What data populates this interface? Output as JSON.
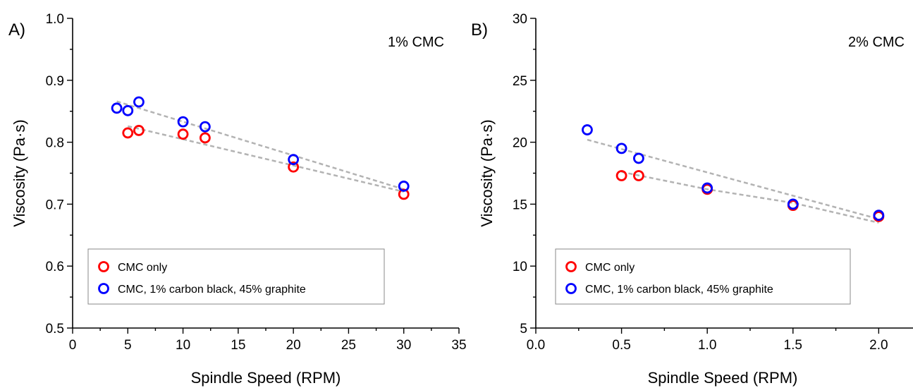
{
  "chart_data": [
    {
      "type": "scatter",
      "panel_label": "A)",
      "annotation": "1% CMC",
      "xlabel": "Spindle Speed (RPM)",
      "ylabel": "Viscosity (Pa·s)",
      "xlim": [
        0,
        35
      ],
      "ylim": [
        0.5,
        1.0
      ],
      "x_ticks": [
        0,
        5,
        10,
        15,
        20,
        25,
        30,
        35
      ],
      "x_tick_labels": [
        "0",
        "5",
        "10",
        "15",
        "20",
        "25",
        "30",
        "35"
      ],
      "y_ticks": [
        0.5,
        0.6,
        0.7,
        0.8,
        0.9,
        1.0
      ],
      "y_tick_labels": [
        "0.5",
        "0.6",
        "0.7",
        "0.8",
        "0.9",
        "1.0"
      ],
      "legend_position": "bottom-left",
      "series": [
        {
          "name": "CMC only",
          "color": "#ff0000",
          "x": [
            5,
            6,
            10,
            12,
            20,
            30
          ],
          "y": [
            0.815,
            0.819,
            0.813,
            0.807,
            0.76,
            0.716
          ],
          "trend": [
            [
              5,
              0.826
            ],
            [
              30,
              0.72
            ]
          ]
        },
        {
          "name": "CMC, 1% carbon black, 45% graphite",
          "color": "#0000ff",
          "x": [
            4,
            5,
            6,
            10,
            12,
            20,
            30
          ],
          "y": [
            0.855,
            0.851,
            0.865,
            0.833,
            0.825,
            0.772,
            0.729
          ],
          "trend": [
            [
              4,
              0.866
            ],
            [
              30,
              0.724
            ]
          ]
        }
      ]
    },
    {
      "type": "scatter",
      "panel_label": "B)",
      "annotation": "2% CMC",
      "xlabel": "Spindle Speed (RPM)",
      "ylabel": "Viscosity (Pa·s)",
      "xlim": [
        0,
        2.2
      ],
      "ylim": [
        5,
        30
      ],
      "x_ticks": [
        0,
        0.5,
        1.0,
        1.5,
        2.0
      ],
      "x_tick_labels": [
        "0.0",
        "0.5",
        "1.0",
        "1.5",
        "2.0"
      ],
      "y_ticks": [
        5,
        10,
        15,
        20,
        25,
        30
      ],
      "y_tick_labels": [
        "5",
        "10",
        "15",
        "20",
        "25",
        "30"
      ],
      "legend_position": "bottom-left",
      "series": [
        {
          "name": "CMC only",
          "color": "#ff0000",
          "x": [
            0.5,
            0.6,
            1.0,
            1.5,
            2.0
          ],
          "y": [
            17.3,
            17.3,
            16.2,
            14.9,
            14.0
          ],
          "trend": [
            [
              0.5,
              17.6
            ],
            [
              1.0,
              16.2
            ],
            [
              1.5,
              15.1
            ],
            [
              2.0,
              13.5
            ]
          ]
        },
        {
          "name": "CMC, 1% carbon black, 45% graphite",
          "color": "#0000ff",
          "x": [
            0.3,
            0.5,
            0.6,
            1.0,
            1.5,
            2.0
          ],
          "y": [
            21.0,
            19.5,
            18.7,
            16.3,
            15.0,
            14.1
          ],
          "trend": [
            [
              0.3,
              20.2
            ],
            [
              2.0,
              13.8
            ]
          ]
        }
      ]
    }
  ]
}
